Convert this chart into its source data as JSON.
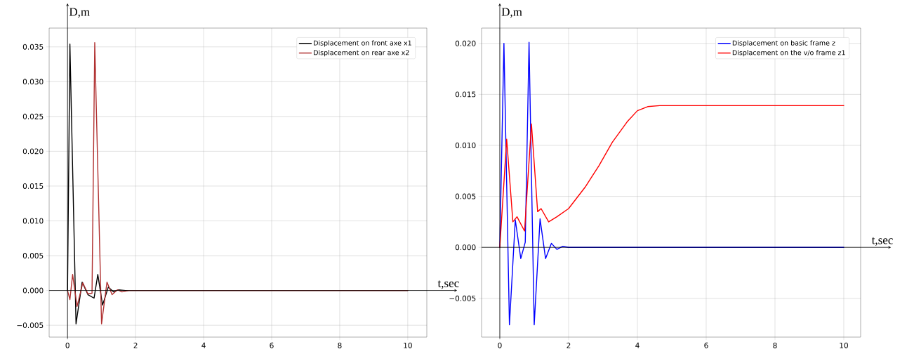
{
  "chart_data": [
    {
      "type": "line",
      "xlabel": "t,sec",
      "ylabel": "D,m",
      "xlim": [
        -0.54,
        10.56
      ],
      "ylim": [
        -0.0067,
        0.0377
      ],
      "xticks": [
        0,
        2,
        4,
        6,
        8,
        10
      ],
      "yticks": [
        {
          "value": -0.005,
          "label": "−0.005"
        },
        {
          "value": 0,
          "label": "0.000"
        },
        {
          "value": 0.005,
          "label": "0.005"
        },
        {
          "value": 0.01,
          "label": "0.010"
        },
        {
          "value": 0.015,
          "label": "0.015"
        },
        {
          "value": 0.02,
          "label": "0.020"
        },
        {
          "value": 0.025,
          "label": "0.025"
        },
        {
          "value": 0.03,
          "label": "0.030"
        },
        {
          "value": 0.035,
          "label": "0.035"
        }
      ],
      "grid": true,
      "legend": "top right",
      "series": [
        {
          "name": "Displacement on front axe x1",
          "color": "#000000",
          "x": [
            0,
            0.07,
            0.25,
            0.43,
            0.6,
            0.78,
            0.89,
            1.03,
            1.2,
            1.35,
            1.5,
            1.7,
            2,
            10
          ],
          "values": [
            0,
            0.0354,
            -0.0048,
            0.0012,
            -0.0006,
            -0.0011,
            0.0023,
            -0.0021,
            0.0005,
            -0.0002,
            0.0001,
            0,
            0,
            0
          ]
        },
        {
          "name": "Displacement on rear axe x2",
          "color": "#b03030",
          "x": [
            0,
            0.07,
            0.15,
            0.28,
            0.45,
            0.6,
            0.72,
            0.8,
            1.0,
            1.16,
            1.31,
            1.47,
            1.6,
            1.8,
            2,
            10
          ],
          "values": [
            0,
            -0.0013,
            0.0023,
            -0.0023,
            0.0011,
            -0.0005,
            -0.0004,
            0.0356,
            -0.0048,
            0.0012,
            -0.0006,
            0.0001,
            -0.0002,
            0,
            0,
            0
          ]
        }
      ]
    },
    {
      "type": "line",
      "xlabel": "t,sec",
      "ylabel": "D,m",
      "xlim": [
        -0.53,
        10.49
      ],
      "ylim": [
        -0.0088,
        0.0215
      ],
      "xticks": [
        0,
        2,
        4,
        6,
        8,
        10
      ],
      "yticks": [
        {
          "value": -0.005,
          "label": "−0.005"
        },
        {
          "value": 0,
          "label": "0.000"
        },
        {
          "value": 0.005,
          "label": "0.005"
        },
        {
          "value": 0.01,
          "label": "0.010"
        },
        {
          "value": 0.015,
          "label": "0.015"
        },
        {
          "value": 0.02,
          "label": "0.020"
        }
      ],
      "grid": true,
      "legend": "top right",
      "series": [
        {
          "name": "Displacement on basic frame z",
          "color": "#0000ff",
          "x": [
            0,
            0.12,
            0.28,
            0.45,
            0.61,
            0.74,
            0.85,
            1.0,
            1.17,
            1.33,
            1.5,
            1.66,
            1.83,
            2,
            10
          ],
          "values": [
            0,
            0.02,
            -0.0076,
            0.0027,
            -0.0011,
            0.0005,
            0.0201,
            -0.0076,
            0.0028,
            -0.0011,
            0.0004,
            -0.0002,
            0.0001,
            0,
            0
          ]
        },
        {
          "name": "Displacement on the v/o frame z1",
          "color": "#ff0000",
          "x": [
            0,
            0.2,
            0.38,
            0.5,
            0.72,
            0.92,
            1.1,
            1.2,
            1.42,
            1.66,
            2.0,
            2.48,
            2.88,
            3.27,
            3.7,
            4.0,
            4.3,
            4.65,
            6,
            8,
            10
          ],
          "values": [
            0,
            0.0106,
            0.0025,
            0.003,
            0.0016,
            0.0121,
            0.0035,
            0.0038,
            0.0025,
            0.003,
            0.0038,
            0.0059,
            0.008,
            0.0103,
            0.0123,
            0.0134,
            0.0138,
            0.0139,
            0.0139,
            0.0139,
            0.0139
          ]
        }
      ]
    }
  ]
}
